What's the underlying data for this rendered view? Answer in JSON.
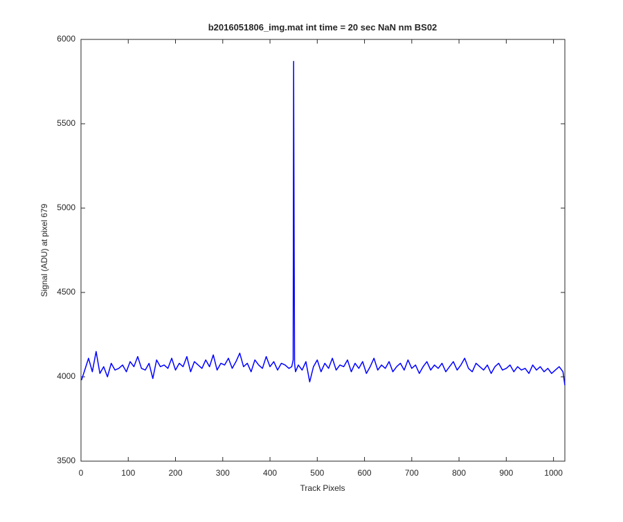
{
  "chart_data": {
    "type": "line",
    "title": "b2016051806_img.mat int time = 20 sec  NaN nm BS02",
    "x_label": "Track Pixels",
    "y_label": "Signal (ADU) at pixel 679",
    "xlim": [
      0,
      1024
    ],
    "xticks": [
      0,
      100,
      200,
      300,
      400,
      500,
      600,
      700,
      800,
      900,
      1000
    ],
    "ylim": [
      3500,
      6000
    ],
    "yticks": [
      3500,
      4000,
      4500,
      5000,
      5500,
      6000
    ],
    "grid": false,
    "x": [
      1,
      8,
      16,
      24,
      32,
      40,
      48,
      56,
      64,
      72,
      80,
      88,
      96,
      104,
      112,
      120,
      128,
      136,
      144,
      152,
      160,
      168,
      176,
      184,
      192,
      200,
      208,
      216,
      224,
      232,
      240,
      248,
      256,
      264,
      272,
      280,
      288,
      296,
      304,
      312,
      320,
      328,
      336,
      344,
      352,
      360,
      368,
      376,
      384,
      392,
      400,
      408,
      416,
      424,
      432,
      440,
      446,
      449,
      450,
      451,
      452,
      454,
      460,
      468,
      476,
      484,
      492,
      500,
      508,
      516,
      524,
      532,
      540,
      548,
      556,
      564,
      572,
      580,
      588,
      596,
      604,
      612,
      620,
      628,
      636,
      644,
      652,
      660,
      668,
      676,
      684,
      692,
      700,
      708,
      716,
      724,
      732,
      740,
      748,
      756,
      764,
      772,
      780,
      788,
      796,
      804,
      812,
      820,
      828,
      836,
      844,
      852,
      860,
      868,
      876,
      884,
      892,
      900,
      908,
      916,
      924,
      932,
      940,
      948,
      956,
      964,
      972,
      980,
      988,
      996,
      1004,
      1012,
      1020,
      1024
    ],
    "series": [
      {
        "color": "#0000ff",
        "values": [
          3980,
          4040,
          4110,
          4030,
          4150,
          4020,
          4060,
          4000,
          4080,
          4040,
          4050,
          4070,
          4030,
          4090,
          4060,
          4120,
          4050,
          4040,
          4080,
          3990,
          4100,
          4060,
          4070,
          4050,
          4110,
          4040,
          4080,
          4060,
          4120,
          4030,
          4090,
          4070,
          4050,
          4100,
          4060,
          4130,
          4040,
          4080,
          4070,
          4110,
          4050,
          4090,
          4140,
          4060,
          4080,
          4030,
          4100,
          4070,
          4050,
          4120,
          4060,
          4090,
          4040,
          4080,
          4070,
          4050,
          4060,
          4100,
          5870,
          4900,
          4080,
          4030,
          4070,
          4040,
          4090,
          3970,
          4060,
          4100,
          4030,
          4080,
          4050,
          4110,
          4040,
          4070,
          4060,
          4100,
          4030,
          4080,
          4050,
          4090,
          4020,
          4060,
          4110,
          4040,
          4070,
          4050,
          4090,
          4030,
          4060,
          4080,
          4040,
          4100,
          4050,
          4070,
          4020,
          4060,
          4090,
          4040,
          4070,
          4050,
          4080,
          4030,
          4060,
          4090,
          4040,
          4070,
          4110,
          4050,
          4030,
          4080,
          4060,
          4040,
          4070,
          4020,
          4060,
          4080,
          4040,
          4050,
          4070,
          4030,
          4060,
          4040,
          4050,
          4020,
          4070,
          4040,
          4060,
          4030,
          4050,
          4020,
          4040,
          4060,
          4030,
          3950
        ]
      }
    ]
  }
}
